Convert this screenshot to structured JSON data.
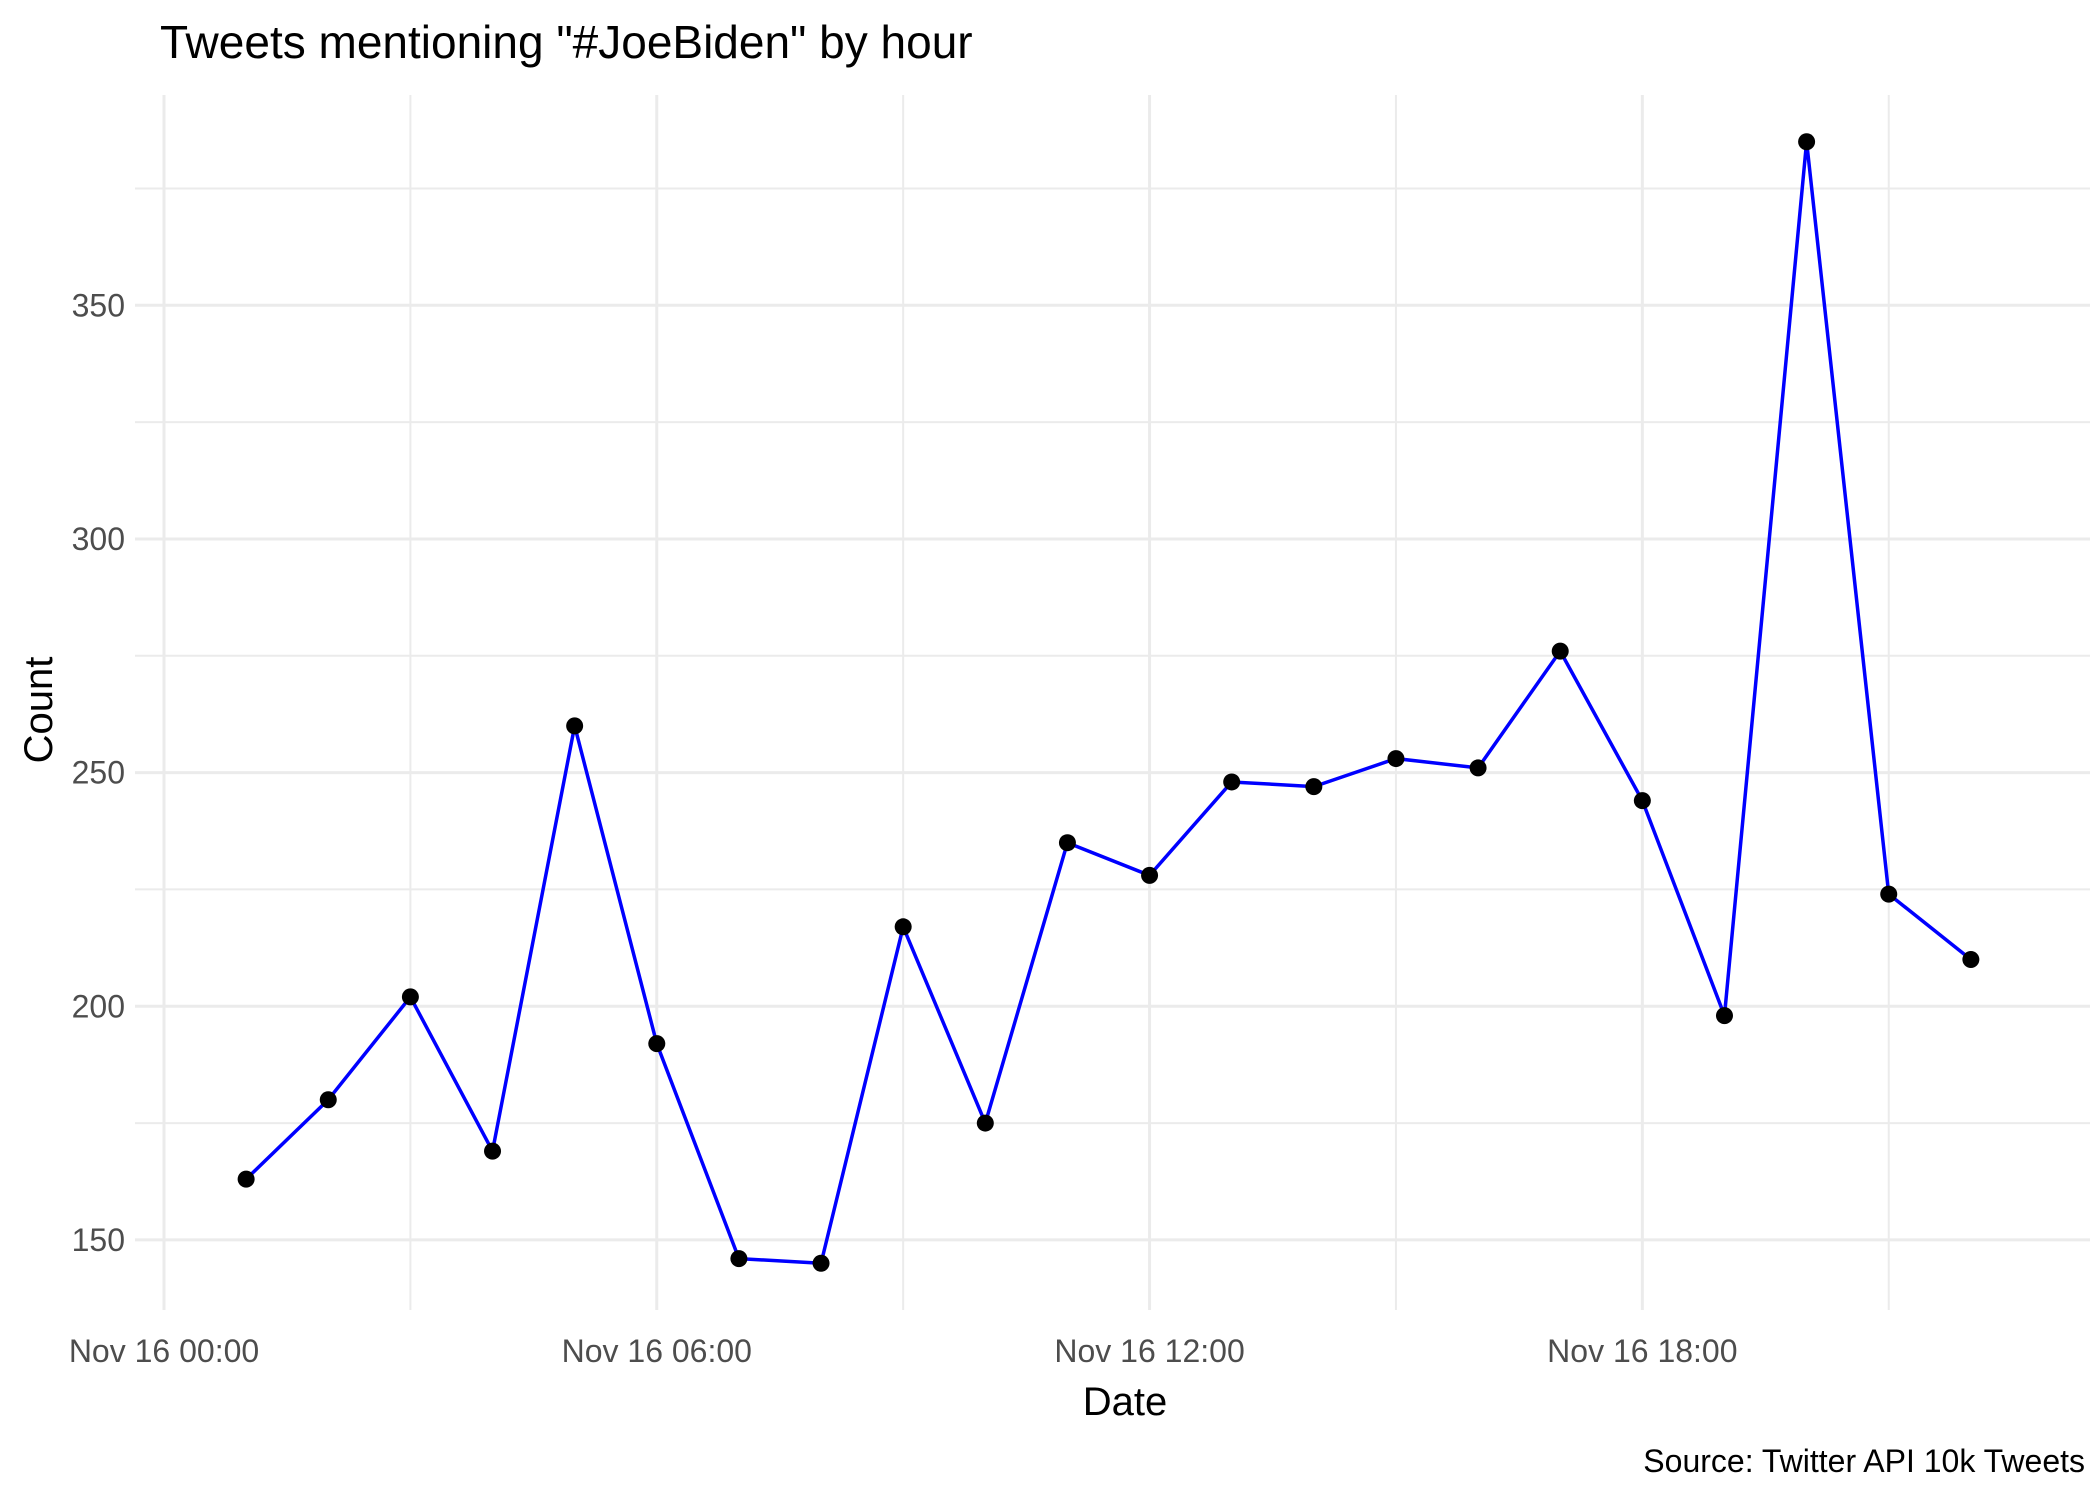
{
  "chart_data": {
    "type": "line",
    "title": "Tweets mentioning \"#JoeBiden\" by hour",
    "xlabel": "Date",
    "ylabel": "Count",
    "caption": "Source: Twitter API 10k Tweets",
    "x_tick_labels": [
      "Nov 16 00:00",
      "Nov 16 06:00",
      "Nov 16 12:00",
      "Nov 16 18:00"
    ],
    "x_tick_hours": [
      0,
      6,
      12,
      18
    ],
    "y_tick_labels": [
      "150",
      "200",
      "250",
      "300",
      "350"
    ],
    "y_tick_values": [
      150,
      200,
      250,
      300,
      350
    ],
    "xlim_hours": [
      0,
      23
    ],
    "ylim": [
      135,
      395
    ],
    "grid": true,
    "colors": {
      "line": "#0000ff",
      "points": "#000000",
      "grid": "#ebebeb"
    },
    "series": [
      {
        "x": [
          "Nov 16 01:00",
          "Nov 16 02:00",
          "Nov 16 03:00",
          "Nov 16 04:00",
          "Nov 16 05:00",
          "Nov 16 06:00",
          "Nov 16 07:00",
          "Nov 16 08:00",
          "Nov 16 09:00",
          "Nov 16 10:00",
          "Nov 16 11:00",
          "Nov 16 12:00",
          "Nov 16 13:00",
          "Nov 16 14:00",
          "Nov 16 15:00",
          "Nov 16 16:00",
          "Nov 16 17:00",
          "Nov 16 18:00",
          "Nov 16 19:00",
          "Nov 16 20:00",
          "Nov 16 21:00",
          "Nov 16 22:00"
        ],
        "values": [
          163,
          180,
          202,
          169,
          260,
          192,
          146,
          145,
          217,
          175,
          235,
          228,
          248,
          247,
          253,
          251,
          276,
          244,
          198,
          385,
          224,
          210
        ]
      }
    ]
  }
}
